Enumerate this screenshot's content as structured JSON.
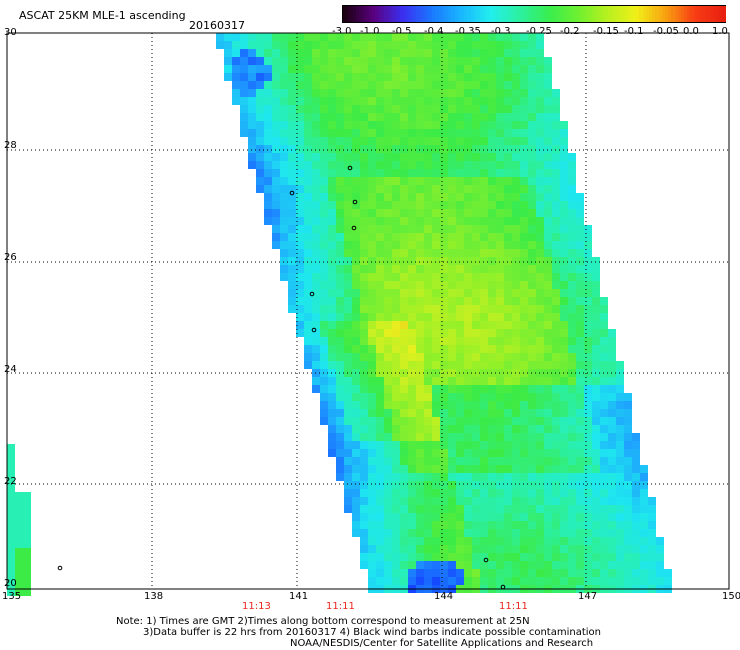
{
  "header": {
    "title": "ASCAT 25KM MLE-1 ascending",
    "date": "20160317"
  },
  "colorbar": {
    "labels": [
      "-3.0",
      "-1.0",
      "-0.5",
      "-0.4",
      "-0.35",
      "-0.3",
      "-0.25",
      "-0.2",
      "-0.15",
      "-0.1",
      "-0.05",
      "0.0",
      "1.0"
    ],
    "colors": [
      "#1a0010",
      "#5a0080",
      "#3a30f0",
      "#1a78ff",
      "#19b7ff",
      "#22eeee",
      "#2cf0a0",
      "#38ee50",
      "#6ef030",
      "#b8f020",
      "#f0f018",
      "#f8a010",
      "#f83c14",
      "#e82010"
    ]
  },
  "axes": {
    "x_ticks": [
      "135",
      "138",
      "141",
      "144",
      "147",
      "150"
    ],
    "y_ticks": [
      "30",
      "28",
      "26",
      "24",
      "22",
      "20"
    ]
  },
  "times": [
    "11:13",
    "11:11",
    "11:11"
  ],
  "notes": {
    "line1": "Note: 1) Times are GMT 2)Times along bottom correspond to measurement at 25N",
    "line2": "3)Data buffer is 22 hrs from 20160317 4) Black wind barbs indicate possible contamination",
    "line3": "NOAA/NESDIS/Center for Satellite Applications and Research"
  }
}
